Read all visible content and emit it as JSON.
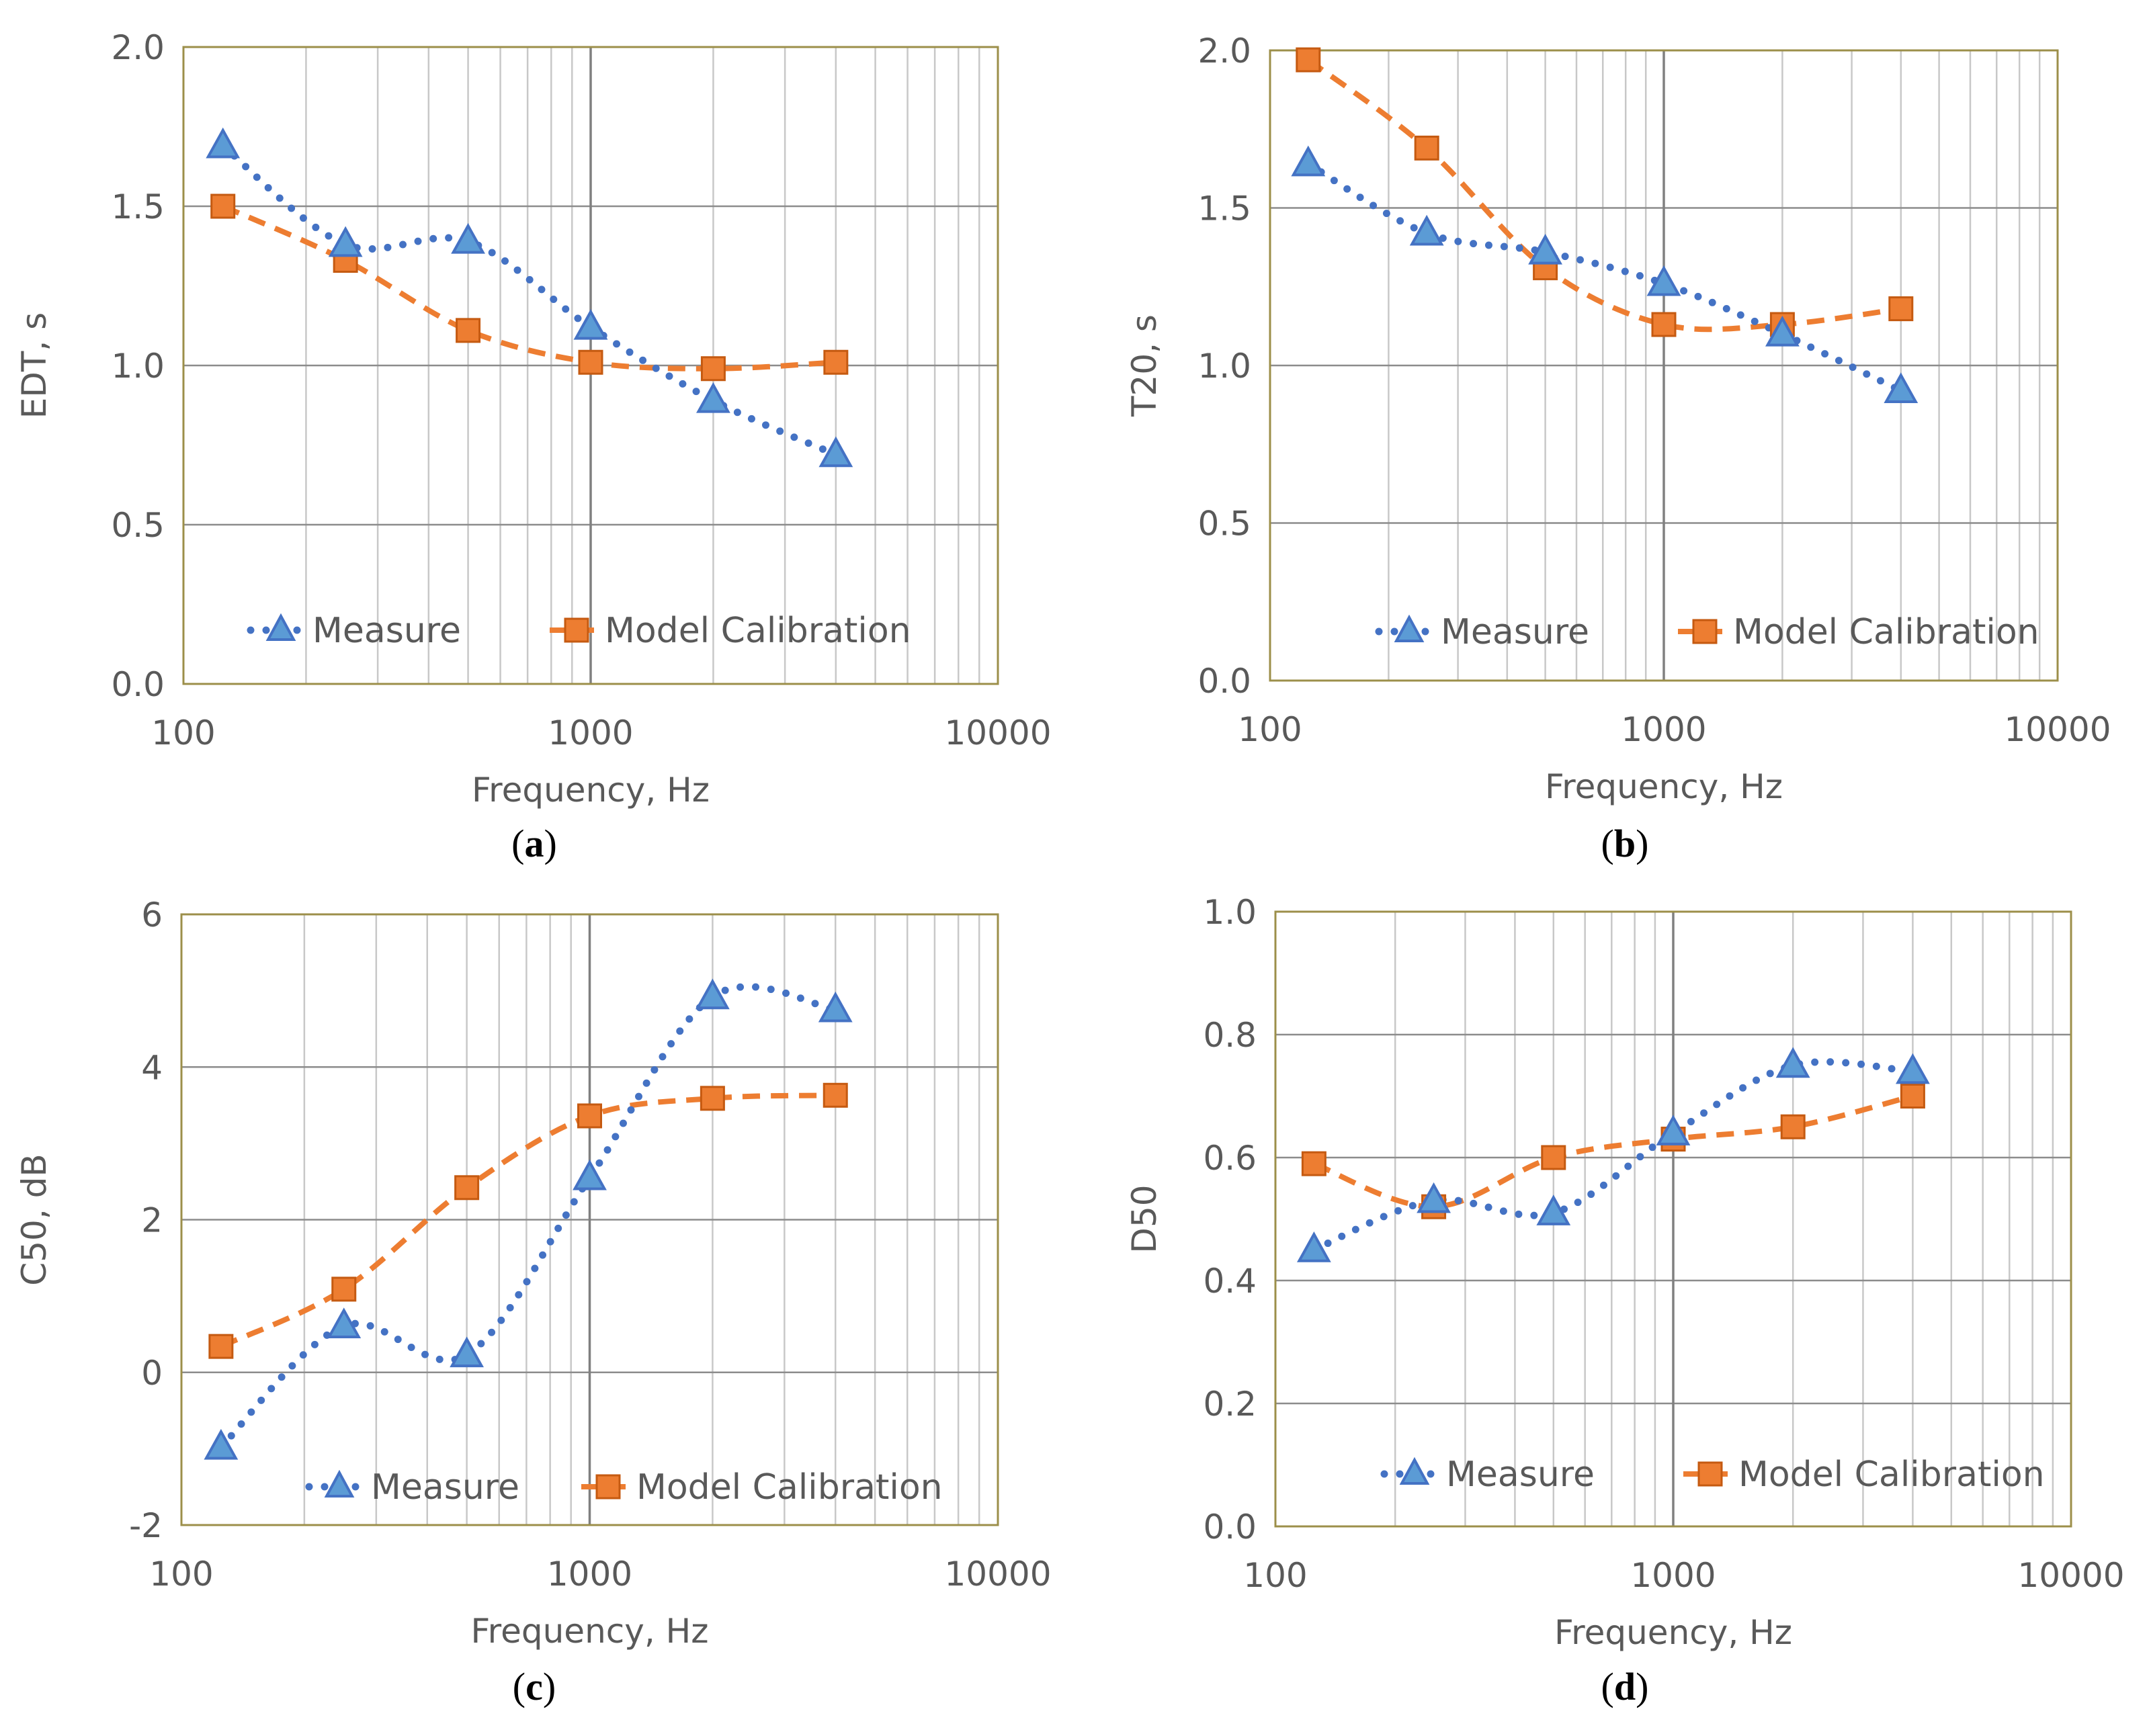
{
  "figure": {
    "panels": [
      "(a)",
      "(b)",
      "(c)",
      "(d)"
    ]
  },
  "colors": {
    "measure": "#4472C4",
    "measure_marker": "#5B9BD5",
    "model": "#ED7D31",
    "model_marker_fill": "#ED7D31",
    "plot_border": "#9C8F4A",
    "grid": "#C8C8C8",
    "grid_decade": "#808080",
    "text": "#595959"
  },
  "chart_data": [
    {
      "panel": "a",
      "caption_letter": "a",
      "type": "line",
      "xscale": "log",
      "xlim": [
        100,
        10000
      ],
      "xticks": [
        "100",
        "1000",
        "10000"
      ],
      "ylim": [
        0,
        2
      ],
      "yticks": [
        "0.0",
        "0.5",
        "1.0",
        "1.5",
        "2.0"
      ],
      "xlabel": "Frequency, Hz",
      "ylabel": "EDT, s",
      "x": [
        125,
        250,
        500,
        1000,
        2000,
        4000
      ],
      "series": [
        {
          "name": "Measure",
          "marker": "triangle",
          "line": "dotted",
          "values": [
            1.69,
            1.38,
            1.39,
            1.12,
            0.89,
            0.72
          ]
        },
        {
          "name": "Model Calibration",
          "marker": "square",
          "line": "dashed",
          "values": [
            1.5,
            1.33,
            1.11,
            1.01,
            0.99,
            1.01
          ]
        }
      ],
      "legend": "bottom-inside"
    },
    {
      "panel": "b",
      "caption_letter": "b",
      "type": "line",
      "xscale": "log",
      "xlim": [
        100,
        10000
      ],
      "xticks": [
        "100",
        "1000",
        "10000"
      ],
      "ylim": [
        0,
        2
      ],
      "yticks": [
        "0.0",
        "0.5",
        "1.0",
        "1.5",
        "2.0"
      ],
      "xlabel": "Frequency, Hz",
      "ylabel": "T20, s",
      "x": [
        125,
        250,
        500,
        1000,
        2000,
        4000
      ],
      "series": [
        {
          "name": "Measure",
          "marker": "triangle",
          "line": "dotted",
          "values": [
            1.64,
            1.42,
            1.36,
            1.26,
            1.1,
            0.92
          ]
        },
        {
          "name": "Model Calibration",
          "marker": "square",
          "line": "dashed",
          "values": [
            1.97,
            1.69,
            1.31,
            1.13,
            1.13,
            1.18
          ]
        }
      ],
      "legend": "bottom-inside"
    },
    {
      "panel": "c",
      "caption_letter": "c",
      "type": "line",
      "xscale": "log",
      "xlim": [
        100,
        10000
      ],
      "xticks": [
        "100",
        "1000",
        "10000"
      ],
      "ylim": [
        -2,
        6
      ],
      "yticks": [
        "-2",
        "0",
        "2",
        "4",
        "6"
      ],
      "xlabel": "Frequency, Hz",
      "ylabel": "C50, dB",
      "x": [
        125,
        250,
        500,
        1000,
        2000,
        4000
      ],
      "series": [
        {
          "name": "Measure",
          "marker": "triangle",
          "line": "dotted",
          "values": [
            -0.98,
            0.61,
            0.23,
            2.55,
            4.92,
            4.75
          ]
        },
        {
          "name": "Model Calibration",
          "marker": "square",
          "line": "dashed",
          "values": [
            0.34,
            1.09,
            2.42,
            3.36,
            3.59,
            3.63
          ]
        }
      ],
      "legend": "bottom-inside"
    },
    {
      "panel": "d",
      "caption_letter": "d",
      "type": "line",
      "xscale": "log",
      "xlim": [
        100,
        10000
      ],
      "xticks": [
        "100",
        "1000",
        "10000"
      ],
      "ylim": [
        0,
        1
      ],
      "yticks": [
        "0.0",
        "0.2",
        "0.4",
        "0.6",
        "0.8",
        "1.0"
      ],
      "xlabel": "Frequency, Hz",
      "ylabel": "D50",
      "x": [
        125,
        250,
        500,
        1000,
        2000,
        4000
      ],
      "series": [
        {
          "name": "Measure",
          "marker": "triangle",
          "line": "dotted",
          "values": [
            0.45,
            0.53,
            0.51,
            0.64,
            0.75,
            0.74
          ]
        },
        {
          "name": "Model Calibration",
          "marker": "square",
          "line": "dashed",
          "values": [
            0.59,
            0.52,
            0.6,
            0.63,
            0.65,
            0.7
          ]
        }
      ],
      "legend": "bottom-inside"
    }
  ]
}
